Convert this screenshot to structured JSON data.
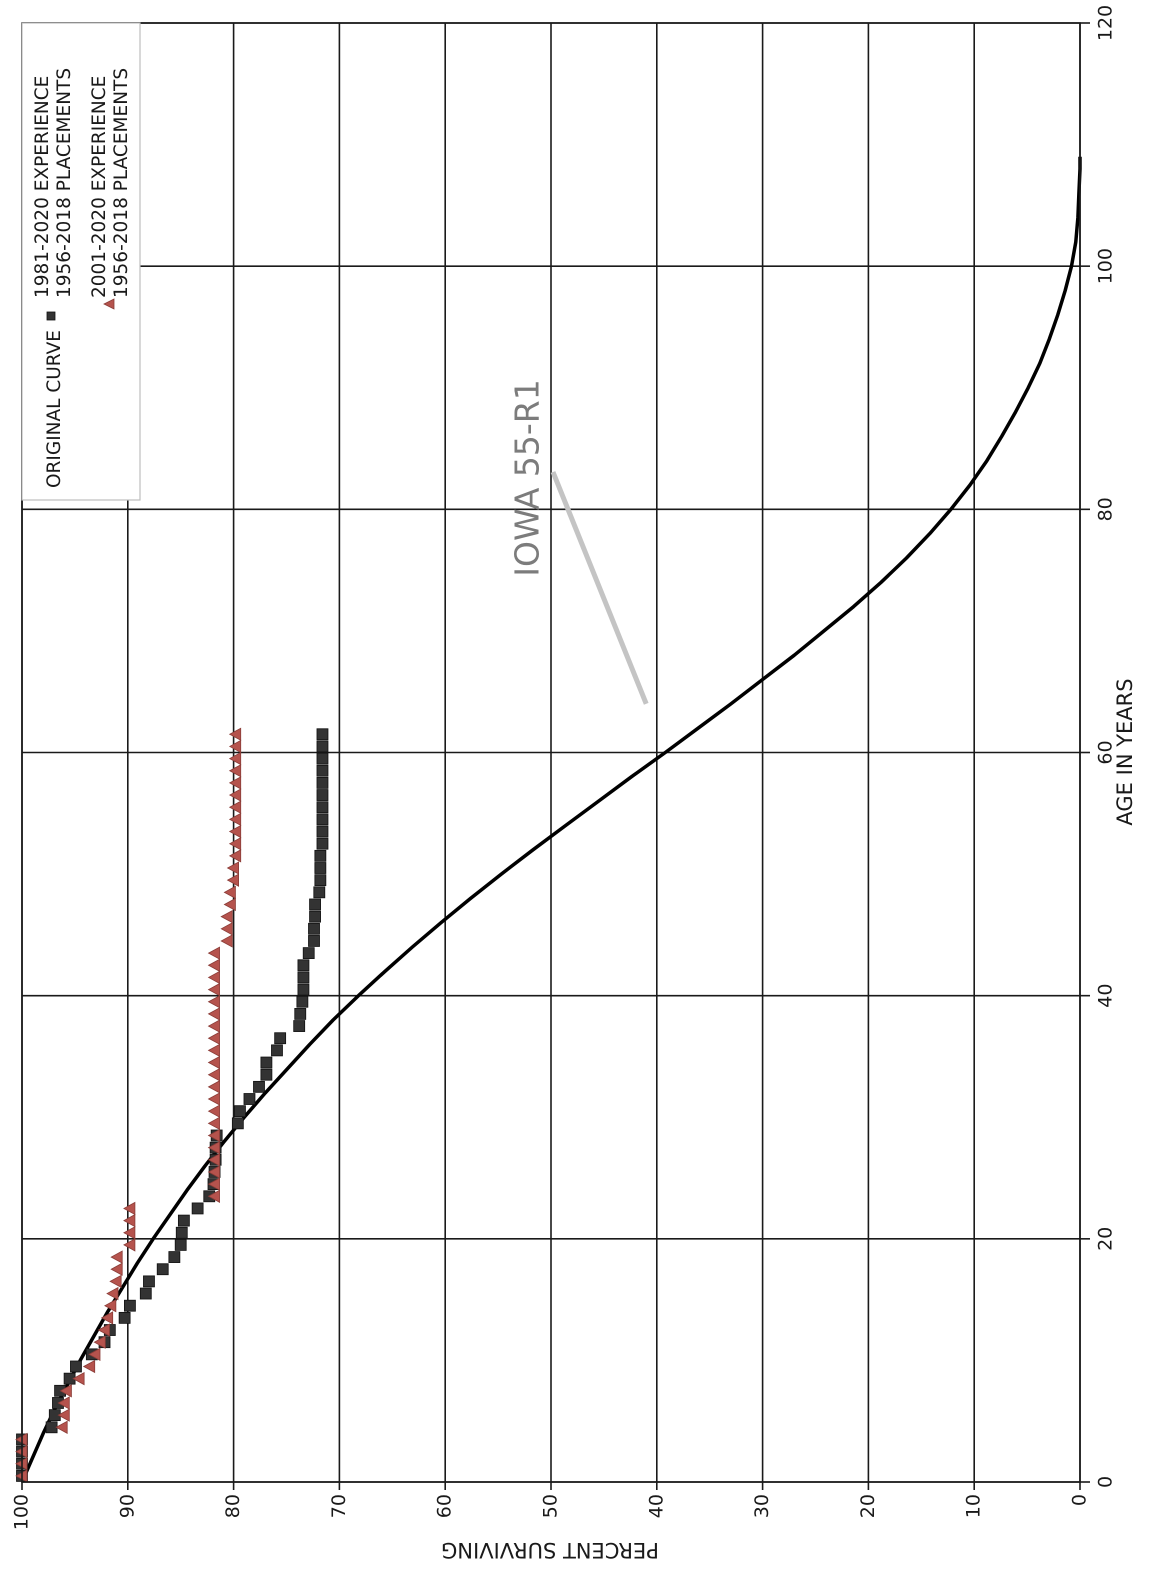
{
  "chart_data": {
    "type": "scatter",
    "orientation": "rotated-90-clockwise",
    "xlabel": "AGE IN YEARS",
    "ylabel": "PERCENT SURVIVING",
    "xlim": [
      0,
      120
    ],
    "ylim": [
      0,
      100
    ],
    "x_ticks": [
      0,
      20,
      40,
      60,
      80,
      100,
      120
    ],
    "y_ticks": [
      0,
      10,
      20,
      30,
      40,
      50,
      60,
      70,
      80,
      90,
      100
    ],
    "grid": true,
    "legend_position": "top-right",
    "legend": {
      "curve_label": "ORIGINAL CURVE",
      "series1_line1": "1981-2020 EXPERIENCE",
      "series1_line2": "1956-2018 PLACEMENTS",
      "series2_line1": "2001-2020 EXPERIENCE",
      "series2_line2": "1956-2018 PLACEMENTS"
    },
    "annotation": {
      "text": "IOWA 55-R1",
      "points_to": {
        "x": 64,
        "y": 41
      }
    },
    "curve": {
      "name": "IOWA 55-R1",
      "x": [
        0,
        2,
        4,
        6,
        8,
        10,
        12,
        14,
        16,
        18,
        20,
        22,
        24,
        26,
        28,
        30,
        32,
        34,
        36,
        38,
        40,
        42,
        44,
        46,
        48,
        50,
        52,
        54,
        56,
        58,
        60,
        62,
        64,
        66,
        68,
        70,
        72,
        74,
        76,
        78,
        80,
        82,
        84,
        86,
        88,
        90,
        92,
        94,
        96,
        98,
        100,
        102,
        104,
        106,
        108,
        109
      ],
      "y": [
        100,
        99.0,
        98.0,
        96.9,
        95.7,
        94.5,
        93.2,
        91.9,
        90.5,
        89.1,
        87.6,
        86.0,
        84.4,
        82.7,
        80.9,
        79.0,
        77.0,
        74.9,
        72.8,
        70.6,
        68.2,
        65.7,
        63.1,
        60.4,
        57.6,
        54.7,
        51.7,
        48.6,
        45.5,
        42.4,
        39.2,
        36.1,
        33.0,
        30.0,
        27.0,
        24.2,
        21.4,
        18.8,
        16.4,
        14.2,
        12.2,
        10.4,
        8.8,
        7.4,
        6.1,
        4.9,
        3.8,
        2.9,
        2.1,
        1.4,
        0.8,
        0.4,
        0.2,
        0.1,
        0,
        0
      ]
    },
    "series": [
      {
        "name": "1981-2020 EXPERIENCE 1956-2018 PLACEMENTS",
        "marker": "square",
        "color": "#333333",
        "x": [
          0.5,
          1.5,
          2.5,
          3.5,
          4.5,
          5.5,
          6.5,
          7.5,
          8.5,
          9.5,
          10.5,
          11.5,
          12.5,
          13.5,
          14.5,
          15.5,
          16.5,
          17.5,
          18.5,
          19.5,
          20.5,
          21.5,
          22.5,
          23.5,
          24.5,
          25.5,
          26.5,
          27.5,
          28.5,
          29.5,
          30.5,
          31.5,
          32.5,
          33.5,
          34.5,
          35.5,
          36.5,
          37.5,
          38.5,
          39.5,
          40.5,
          41.5,
          42.5,
          43.5,
          44.5,
          45.5,
          46.5,
          47.5,
          48.5,
          49.5,
          50.5,
          51.5,
          52.5,
          53.5,
          54.5,
          55.5,
          56.5,
          57.5,
          58.5,
          59.5,
          60.5,
          61.5
        ],
        "y": [
          100,
          100,
          100,
          100,
          97.2,
          96.9,
          96.6,
          96.4,
          95.5,
          94.9,
          93.4,
          92.2,
          91.7,
          90.3,
          89.8,
          88.3,
          88.0,
          86.7,
          85.6,
          85.0,
          84.9,
          84.7,
          83.4,
          82.3,
          81.9,
          81.8,
          81.7,
          81.7,
          81.6,
          79.6,
          79.4,
          78.5,
          77.6,
          76.9,
          76.9,
          75.9,
          75.6,
          73.8,
          73.7,
          73.5,
          73.4,
          73.4,
          73.4,
          72.9,
          72.4,
          72.4,
          72.3,
          72.3,
          71.9,
          71.8,
          71.8,
          71.8,
          71.6,
          71.6,
          71.6,
          71.6,
          71.6,
          71.6,
          71.6,
          71.6,
          71.6,
          71.6
        ]
      },
      {
        "name": "2001-2020 EXPERIENCE 1956-2018 PLACEMENTS",
        "marker": "triangle",
        "color": "#b5534d",
        "x": [
          0.5,
          1.5,
          2.5,
          3.5,
          4.5,
          5.5,
          6.5,
          7.5,
          8.5,
          9.5,
          10.5,
          11.5,
          12.5,
          13.5,
          14.5,
          15.5,
          16.5,
          17.5,
          18.5,
          19.5,
          20.5,
          21.5,
          22.5,
          23.5,
          24.5,
          25.5,
          26.5,
          27.5,
          28.5,
          29.5,
          30.5,
          31.5,
          32.5,
          33.5,
          34.5,
          35.5,
          36.5,
          37.5,
          38.5,
          39.5,
          40.5,
          41.5,
          42.5,
          43.5,
          44.5,
          45.5,
          46.5,
          47.5,
          48.5,
          49.5,
          50.5,
          51.5,
          52.5,
          53.5,
          54.5,
          55.5,
          56.5,
          57.5,
          58.5,
          59.5,
          60.5,
          61.5
        ],
        "y": [
          100,
          100,
          100,
          100,
          96.2,
          96.0,
          96.0,
          95.8,
          94.6,
          93.6,
          93.1,
          92.6,
          92.2,
          91.9,
          91.6,
          91.4,
          91.1,
          91.0,
          91.0,
          89.8,
          89.8,
          89.8,
          89.8,
          81.8,
          81.8,
          81.8,
          81.8,
          81.8,
          81.8,
          81.8,
          81.8,
          81.8,
          81.8,
          81.8,
          81.8,
          81.8,
          81.8,
          81.8,
          81.8,
          81.8,
          81.8,
          81.8,
          81.8,
          81.8,
          80.6,
          80.6,
          80.6,
          80.3,
          80.3,
          80.0,
          80.0,
          79.8,
          79.8,
          79.8,
          79.8,
          79.8,
          79.8,
          79.8,
          79.8,
          79.8,
          79.8,
          79.8
        ]
      }
    ]
  }
}
